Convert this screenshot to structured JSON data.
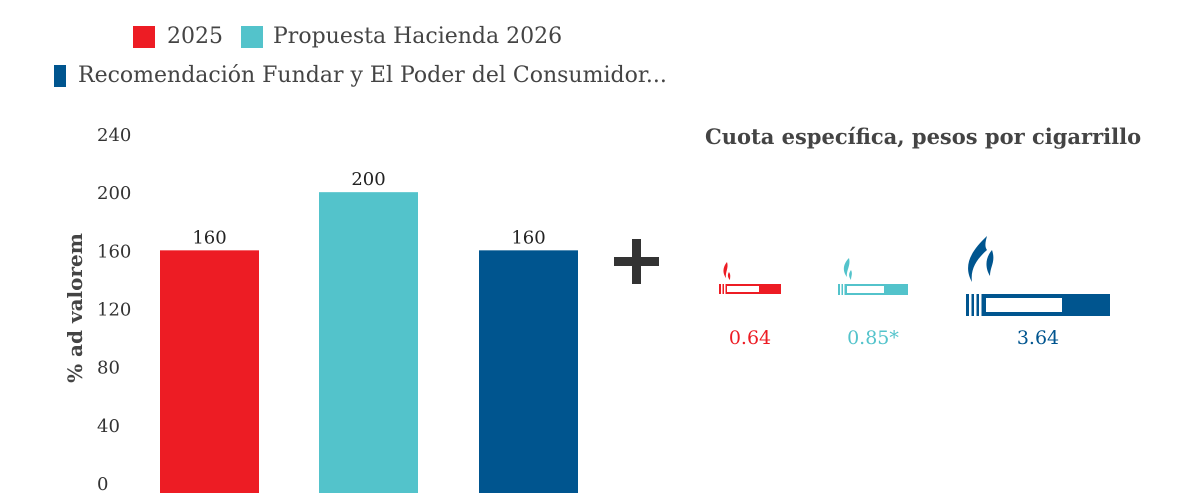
{
  "legend": [
    {
      "label": "2025",
      "color": "#ed1c24"
    },
    {
      "label": "Propuesta Hacienda 2026",
      "color": "#53c3cb"
    },
    {
      "label": "Recomendación Fundar y El Poder del Consumidor...",
      "color": "#00558f"
    }
  ],
  "chart_data": {
    "type": "bar",
    "categories": [
      "2025",
      "Propuesta Hacienda 2026",
      "Recomendación Fundar y El Poder del Consumidor"
    ],
    "values": [
      160,
      200,
      160
    ],
    "data_labels": [
      "160",
      "200",
      "160"
    ],
    "colors": [
      "#ed1c24",
      "#53c3cb",
      "#00558f"
    ],
    "ylabel": "% ad valorem",
    "ylim": [
      0,
      240
    ],
    "yticks": [
      0,
      40,
      80,
      120,
      160,
      200,
      240
    ],
    "grid": false,
    "legend_position": "top-left"
  },
  "operator": {
    "symbol": "+"
  },
  "quota": {
    "title": "Cuota específica, pesos por cigarrillo",
    "items": [
      {
        "value": 0.64,
        "label": "0.64",
        "color": "#ed1c24",
        "icon": "cigarette-icon"
      },
      {
        "value": 0.85,
        "label": "0.85*",
        "color": "#53c3cb",
        "icon": "cigarette-icon"
      },
      {
        "value": 3.64,
        "label": "3.64",
        "color": "#00558f",
        "icon": "cigarette-icon"
      }
    ]
  }
}
